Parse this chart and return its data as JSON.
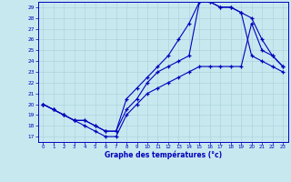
{
  "xlabel": "Graphe des températures (°c)",
  "bg_color": "#c8e8f0",
  "line_color": "#0000bb",
  "grid_color_minor": "#a8d0d8",
  "grid_color_major": "#90b8c8",
  "xlim": [
    -0.5,
    23.5
  ],
  "ylim": [
    16.5,
    29.5
  ],
  "yticks": [
    17,
    18,
    19,
    20,
    21,
    22,
    23,
    24,
    25,
    26,
    27,
    28,
    29
  ],
  "xticks": [
    0,
    1,
    2,
    3,
    4,
    5,
    6,
    7,
    8,
    9,
    10,
    11,
    12,
    13,
    14,
    15,
    16,
    17,
    18,
    19,
    20,
    21,
    22,
    23
  ],
  "line1_x": [
    0,
    1,
    2,
    3,
    4,
    5,
    6,
    7,
    8,
    9,
    10,
    11,
    12,
    13,
    14,
    15,
    16,
    17,
    18,
    19,
    20,
    21,
    22,
    23
  ],
  "line1_y": [
    20,
    19.5,
    19,
    18.5,
    18.5,
    18,
    17.5,
    17.5,
    19.5,
    20.5,
    22,
    23,
    23.5,
    24,
    24.5,
    29.5,
    29.5,
    29,
    29,
    28.5,
    24.5,
    24,
    23.5,
    23
  ],
  "line2_x": [
    0,
    1,
    2,
    3,
    4,
    5,
    6,
    7,
    8,
    9,
    10,
    11,
    12,
    13,
    14,
    15,
    16,
    17,
    18,
    19,
    20,
    21,
    22,
    23
  ],
  "line2_y": [
    20,
    19.5,
    19,
    18.5,
    18.5,
    18,
    17.5,
    17.5,
    20.5,
    21.5,
    22.5,
    23.5,
    24.5,
    26,
    27.5,
    29.5,
    29.5,
    29,
    29,
    28.5,
    28,
    26,
    24.5,
    23.5
  ],
  "line3_x": [
    0,
    1,
    2,
    3,
    4,
    5,
    6,
    7,
    8,
    9,
    10,
    11,
    12,
    13,
    14,
    15,
    16,
    17,
    18,
    19,
    20,
    21,
    22,
    23
  ],
  "line3_y": [
    20,
    19.5,
    19,
    18.5,
    18,
    17.5,
    17,
    17,
    19,
    20,
    21,
    21.5,
    22,
    22.5,
    23,
    23.5,
    23.5,
    23.5,
    23.5,
    23.5,
    27.5,
    25,
    24.5,
    23.5
  ]
}
